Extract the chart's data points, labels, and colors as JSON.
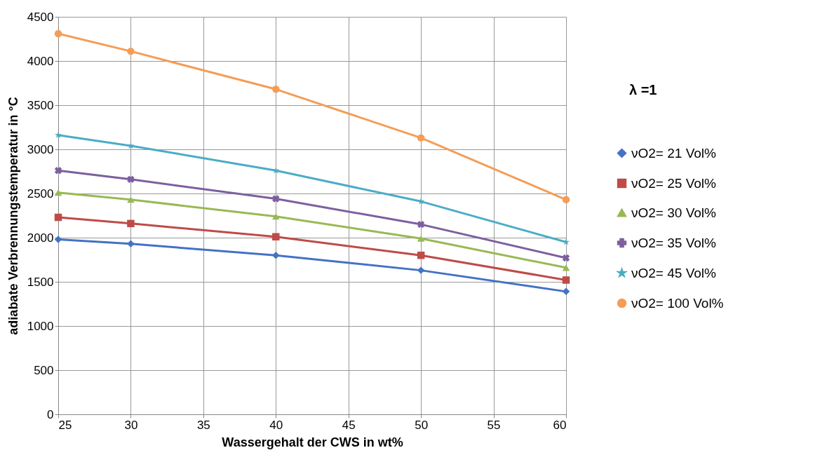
{
  "chart_data": {
    "type": "line",
    "xlabel": "Wassergehalt der CWS   in wt%",
    "ylabel": "adiabate Verbrennungstemperatur in °C",
    "x": [
      25,
      30,
      40,
      50,
      60
    ],
    "series": [
      {
        "name": "νO2= 21 Vol%",
        "color": "#4472c4",
        "marker": "diamond",
        "values": [
          1980,
          1930,
          1800,
          1630,
          1390
        ]
      },
      {
        "name": "νO2= 25 Vol%",
        "color": "#be4b48",
        "marker": "square",
        "values": [
          2230,
          2160,
          2010,
          1800,
          1520
        ]
      },
      {
        "name": "νO2= 30 Vol%",
        "color": "#98b954",
        "marker": "triangle",
        "values": [
          2510,
          2430,
          2240,
          1990,
          1660
        ]
      },
      {
        "name": "νO2= 35 Vol%",
        "color": "#7d5fa0",
        "marker": "cross",
        "values": [
          2760,
          2660,
          2440,
          2150,
          1770
        ]
      },
      {
        "name": "νO2= 45 Vol%",
        "color": "#4aacc6",
        "marker": "star",
        "values": [
          3160,
          3040,
          2760,
          2410,
          1950
        ]
      },
      {
        "name": "νO2= 100 Vol%",
        "color": "#f59d56",
        "marker": "circle",
        "values": [
          4310,
          4110,
          3680,
          3130,
          2430
        ]
      }
    ],
    "xlim": [
      25,
      60
    ],
    "xticks": [
      25,
      30,
      35,
      40,
      45,
      50,
      55,
      60
    ],
    "ylim": [
      0,
      4500
    ],
    "yticks": [
      0,
      500,
      1000,
      1500,
      2000,
      2500,
      3000,
      3500,
      4000,
      4500
    ],
    "annotations": [
      "λ =1"
    ],
    "grid": true,
    "legend": "right",
    "line_style": "solid"
  }
}
